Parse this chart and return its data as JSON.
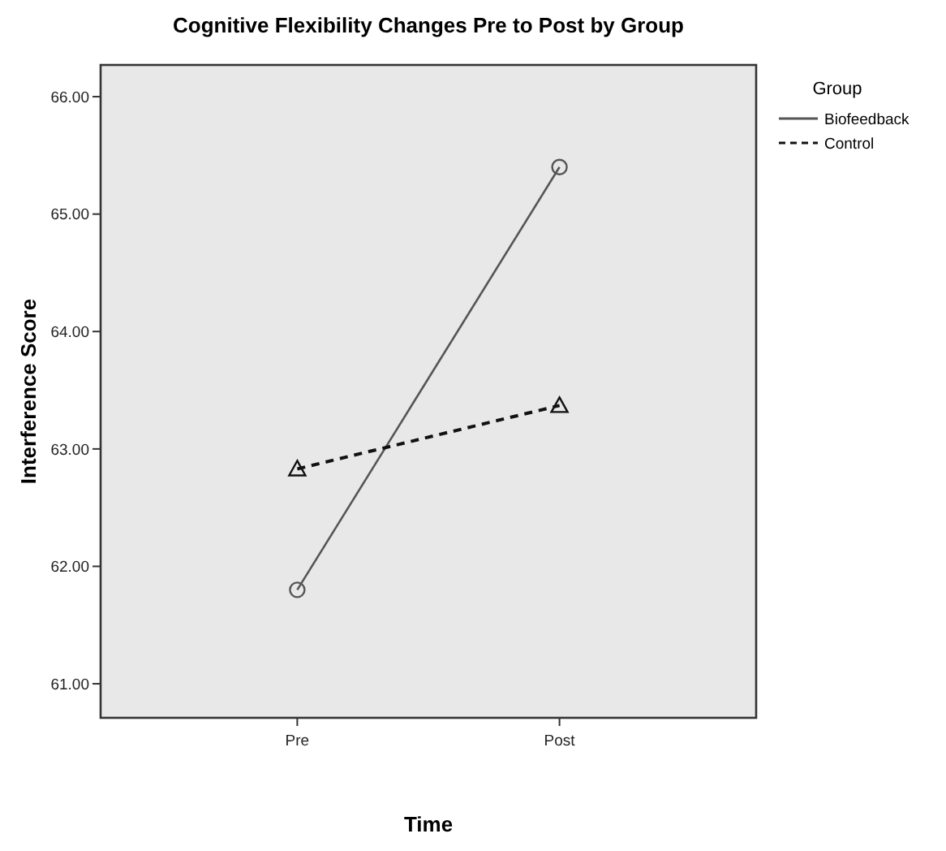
{
  "chart_data": {
    "type": "line",
    "title": "Cognitive Flexibility Changes Pre to Post by Group",
    "xlabel": "Time",
    "ylabel": "Interference Score",
    "legend_title": "Group",
    "categories": [
      "Pre",
      "Post"
    ],
    "series": [
      {
        "name": "Biofeedback",
        "color": "#555555",
        "values": [
          61.8,
          65.4
        ],
        "marker": "circle",
        "line_style": "solid"
      },
      {
        "name": "Control",
        "color": "#111111",
        "values": [
          62.83,
          63.37
        ],
        "marker": "triangle",
        "line_style": "dashed"
      }
    ],
    "ylim": [
      60.71,
      66.27
    ],
    "yticks": [
      {
        "value": 61,
        "label": "61.00"
      },
      {
        "value": 62,
        "label": "62.00"
      },
      {
        "value": 63,
        "label": "63.00"
      },
      {
        "value": 64,
        "label": "64.00"
      },
      {
        "value": 65,
        "label": "65.00"
      },
      {
        "value": 66,
        "label": "66.00"
      }
    ],
    "grid": false,
    "legend": "top right"
  }
}
